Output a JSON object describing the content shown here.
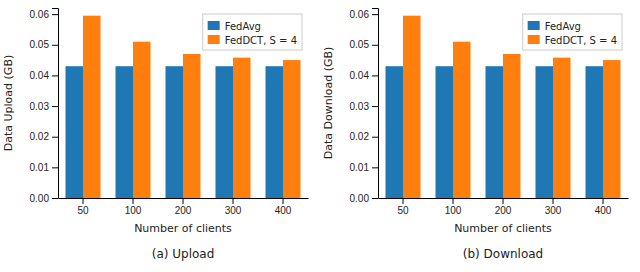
{
  "chart_data": [
    {
      "type": "bar",
      "title": "(a) Upload",
      "xlabel": "Number of clients",
      "ylabel": "Data Upload (GB)",
      "categories": [
        "50",
        "100",
        "200",
        "300",
        "400"
      ],
      "series": [
        {
          "name": "FedAvg",
          "color": "#1f77b4",
          "values": [
            0.043,
            0.043,
            0.043,
            0.043,
            0.043
          ]
        },
        {
          "name": "FedDCT, S = 4",
          "color": "#ff7f0e",
          "values": [
            0.0595,
            0.051,
            0.047,
            0.0458,
            0.045
          ]
        }
      ],
      "ylim": [
        0.0,
        0.062
      ],
      "yticks": [
        {
          "value": 0.0,
          "label": "0.00"
        },
        0.01,
        0.02,
        0.03,
        0.04,
        0.05,
        0.06
      ],
      "legend": "upper right",
      "grid": false
    },
    {
      "type": "bar",
      "title": "(b) Download",
      "xlabel": "Number of clients",
      "ylabel": "Data Download (GB)",
      "categories": [
        "50",
        "100",
        "200",
        "300",
        "400"
      ],
      "series": [
        {
          "name": "FedAvg",
          "color": "#1f77b4",
          "values": [
            0.043,
            0.043,
            0.043,
            0.043,
            0.043
          ]
        },
        {
          "name": "FedDCT, S = 4",
          "color": "#ff7f0e",
          "values": [
            0.0595,
            0.051,
            0.047,
            0.0458,
            0.045
          ]
        }
      ],
      "ylim": [
        0.0,
        0.062
      ],
      "yticks": [
        {
          "value": 0.0,
          "label": "0.00"
        },
        0.01,
        0.02,
        0.03,
        0.04,
        0.05,
        0.06
      ],
      "legend": "upper right",
      "grid": false
    }
  ]
}
